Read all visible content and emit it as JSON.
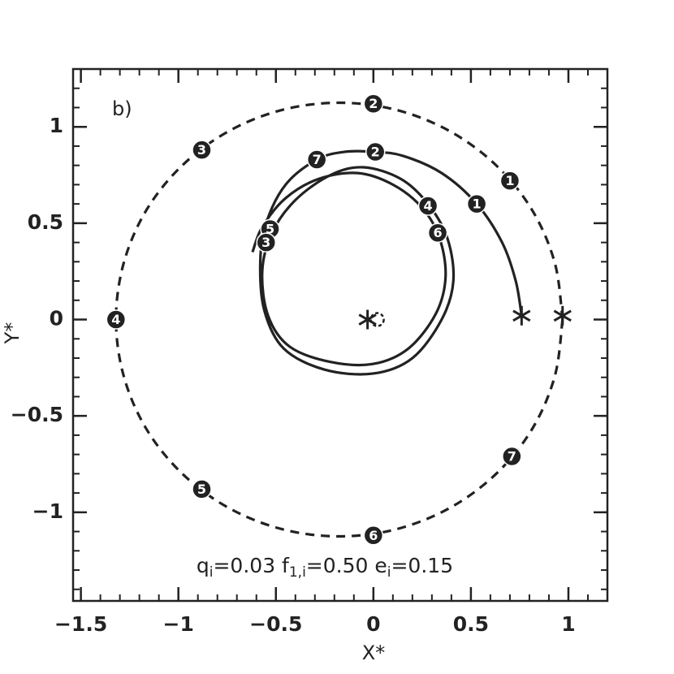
{
  "chart_data": {
    "type": "orbit",
    "panel_label": "b)",
    "xlabel": "X*",
    "ylabel": "Y*",
    "annotation": [
      "q",
      "i",
      "=0.03  f",
      "1,i",
      "=0.50  e",
      "i",
      "=0.15"
    ],
    "xlim": [
      -1.54,
      1.2
    ],
    "ylim": [
      -1.46,
      1.3
    ],
    "xticks": [
      {
        "value": -1.5,
        "label": "−1.5"
      },
      {
        "value": -1,
        "label": "−1"
      },
      {
        "value": -0.5,
        "label": "−0.5"
      },
      0,
      0.5,
      1
    ],
    "yticks": [
      {
        "value": -1,
        "label": "−1"
      },
      {
        "value": -0.5,
        "label": "−0.5"
      },
      0,
      0.5,
      1
    ],
    "series": [
      {
        "style": "dashed",
        "color": "#222222",
        "x": [
          0.97,
          0.931,
          0.817,
          0.635,
          0.398,
          0.121,
          -0.175,
          -0.471,
          -0.748,
          -0.985,
          -1.167,
          -1.281,
          -1.32,
          -1.281,
          -1.167,
          -0.985,
          -0.748,
          -0.471,
          -0.175,
          0.121,
          0.398,
          0.635,
          0.817,
          0.931,
          0.97
        ],
        "y": [
          0,
          0.291,
          0.563,
          0.795,
          0.974,
          1.087,
          1.125,
          1.087,
          0.974,
          0.795,
          0.563,
          0.291,
          0,
          -0.291,
          -0.563,
          -0.795,
          -0.974,
          -1.087,
          -1.125,
          -1.087,
          -0.974,
          -0.795,
          -0.563,
          -0.291,
          0
        ]
      },
      {
        "style": "solid",
        "color": "#222222",
        "x": [
          0.76,
          0.73,
          0.66,
          0.53,
          0.35,
          0.15,
          0.0,
          -0.15,
          -0.29,
          -0.45,
          -0.55,
          -0.58,
          -0.56,
          -0.46,
          -0.25,
          0.0,
          0.2,
          0.35,
          0.41,
          0.38,
          0.28,
          0.14,
          -0.05,
          -0.22,
          -0.4,
          -0.52,
          -0.57,
          -0.54,
          -0.43,
          -0.22,
          0.0,
          0.18,
          0.32,
          0.37,
          0.34,
          0.25,
          0.1,
          -0.08,
          -0.28,
          -0.45,
          -0.57,
          -0.62
        ],
        "y": [
          0.02,
          0.2,
          0.4,
          0.6,
          0.76,
          0.85,
          0.87,
          0.87,
          0.83,
          0.7,
          0.5,
          0.3,
          0.05,
          -0.15,
          -0.26,
          -0.28,
          -0.2,
          0.0,
          0.2,
          0.42,
          0.6,
          0.73,
          0.79,
          0.75,
          0.62,
          0.45,
          0.25,
          0.02,
          -0.14,
          -0.22,
          -0.23,
          -0.15,
          0.03,
          0.22,
          0.42,
          0.58,
          0.7,
          0.76,
          0.73,
          0.63,
          0.48,
          0.35
        ]
      }
    ],
    "markers": [
      {
        "label": "1",
        "x": 0.7,
        "y": 0.72
      },
      {
        "label": "2",
        "x": 0.0,
        "y": 1.12
      },
      {
        "label": "3",
        "x": -0.88,
        "y": 0.88
      },
      {
        "label": "4",
        "x": -1.32,
        "y": 0.0
      },
      {
        "label": "5",
        "x": -0.88,
        "y": -0.88
      },
      {
        "label": "6",
        "x": 0.0,
        "y": -1.12
      },
      {
        "label": "7",
        "x": 0.71,
        "y": -0.71
      },
      {
        "label": "1",
        "x": 0.53,
        "y": 0.6
      },
      {
        "label": "2",
        "x": 0.01,
        "y": 0.87
      },
      {
        "label": "7",
        "x": -0.29,
        "y": 0.83
      },
      {
        "label": "4",
        "x": 0.28,
        "y": 0.59
      },
      {
        "label": "6",
        "x": 0.33,
        "y": 0.45
      },
      {
        "label": "5",
        "x": -0.53,
        "y": 0.47
      },
      {
        "label": "3",
        "x": -0.55,
        "y": 0.4
      }
    ],
    "points": [
      {
        "symbol": "star",
        "x": 0.76,
        "y": 0.02
      },
      {
        "symbol": "star",
        "x": 0.97,
        "y": 0.02
      },
      {
        "symbol": "star",
        "x": -0.03,
        "y": 0.0
      },
      {
        "symbol": "dashed-circle",
        "x": 0.02,
        "y": 0.0
      }
    ]
  }
}
